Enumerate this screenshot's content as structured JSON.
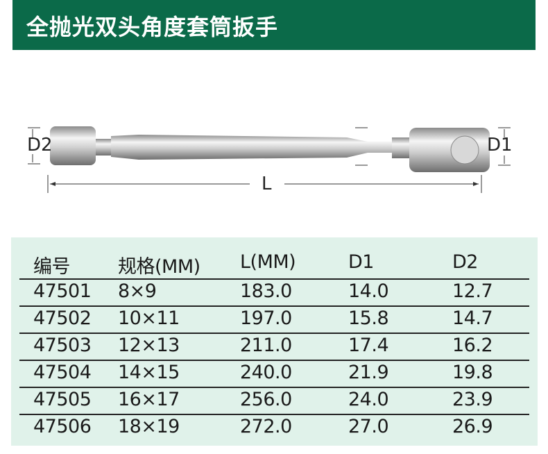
{
  "header": {
    "title": "全抛光双头角度套筒扳手",
    "color": "#0b6a49"
  },
  "figure": {
    "d2_label": "D2",
    "d1_label": "D1",
    "length_label": "L"
  },
  "table": {
    "headers": [
      "编号",
      "规格(MM)",
      "L(MM)",
      "D1",
      "D2"
    ],
    "rows": [
      [
        "47501",
        "8×9",
        "183.0",
        "14.0",
        "12.7"
      ],
      [
        "47502",
        "10×11",
        "197.0",
        "15.8",
        "14.7"
      ],
      [
        "47503",
        "12×13",
        "211.0",
        "17.4",
        "16.2"
      ],
      [
        "47504",
        "14×15",
        "240.0",
        "21.9",
        "19.8"
      ],
      [
        "47505",
        "16×17",
        "256.0",
        "24.0",
        "23.9"
      ],
      [
        "47506",
        "18×19",
        "272.0",
        "27.0",
        "26.9"
      ]
    ],
    "background": "#e0f2ea"
  }
}
